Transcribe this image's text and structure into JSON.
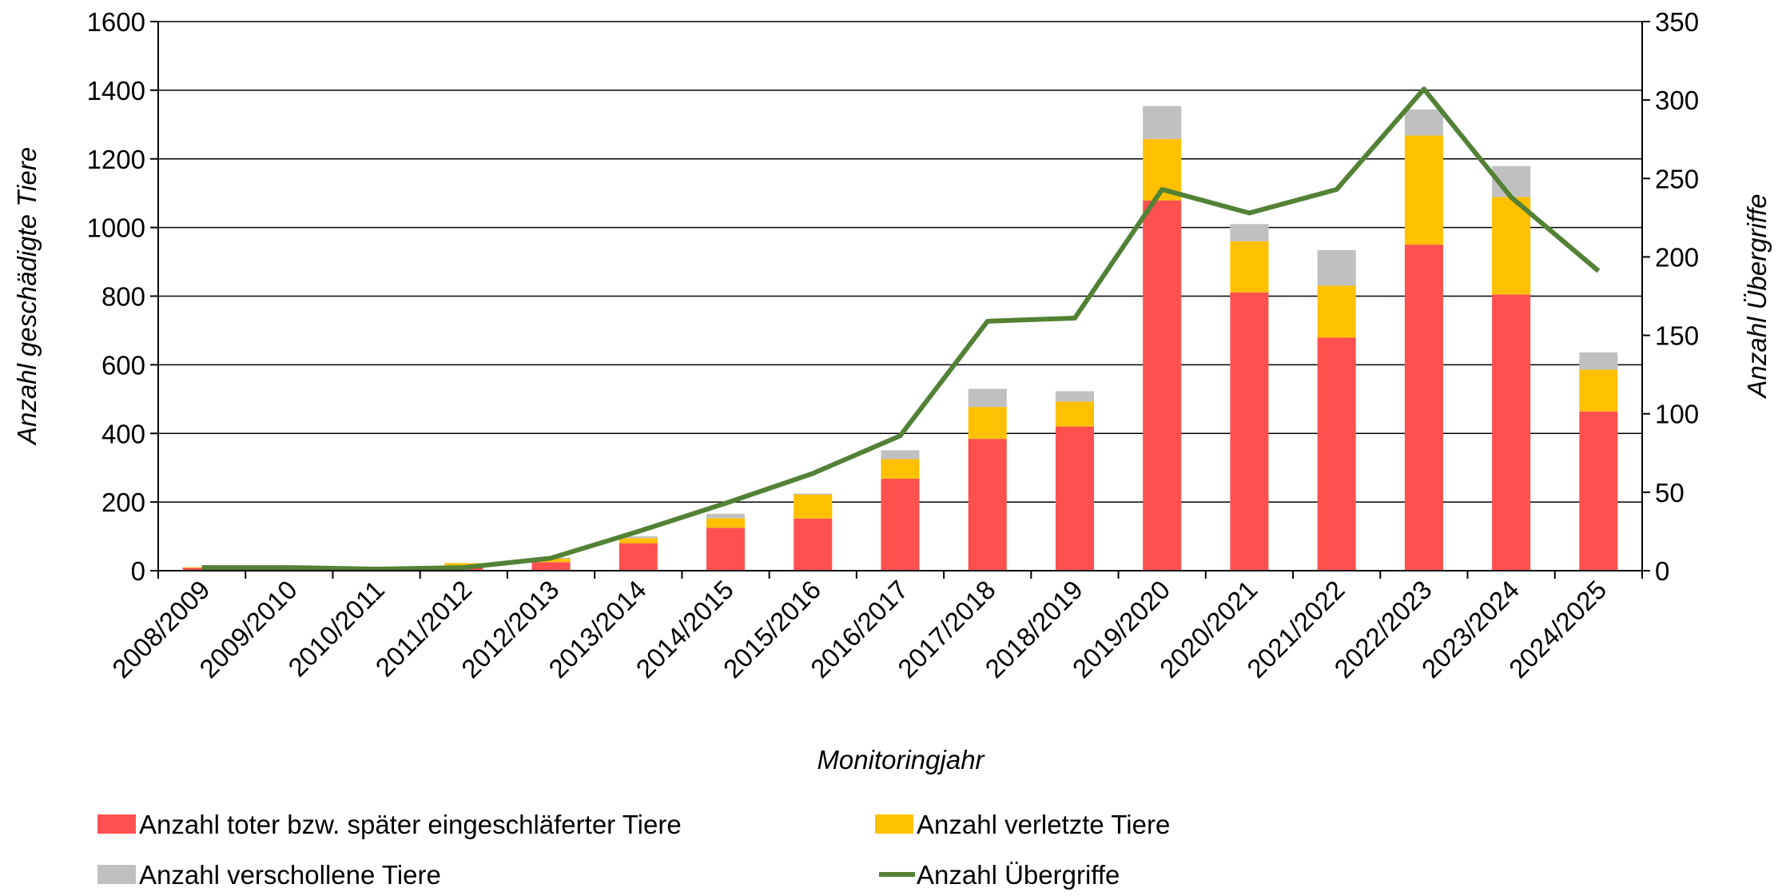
{
  "chart_data": {
    "type": "bar",
    "stacked": true,
    "x_label": "Monitoringjahr",
    "y_label": "Anzahl geschädigte Tiere",
    "y2_label": "Anzahl Übergriffe",
    "categories": [
      "2008/2009",
      "2009/2010",
      "2010/2011",
      "2011/2012",
      "2012/2013",
      "2013/2014",
      "2014/2015",
      "2015/2016",
      "2016/2017",
      "2017/2018",
      "2018/2019",
      "2019/2020",
      "2020/2021",
      "2021/2022",
      "2022/2023",
      "2023/2024",
      "2024/2025"
    ],
    "series": [
      {
        "name": "Anzahl toter bzw. später eingeschläferter Tiere",
        "type": "bar",
        "color": "#ff5050",
        "values": [
          8,
          0,
          0,
          12,
          25,
          80,
          125,
          152,
          268,
          384,
          420,
          1079,
          811,
          679,
          950,
          805,
          464
        ]
      },
      {
        "name": "Anzahl verletzte Tiere",
        "type": "bar",
        "color": "#ffc000",
        "values": [
          2,
          0,
          0,
          10,
          10,
          15,
          28,
          70,
          57,
          93,
          73,
          179,
          149,
          152,
          318,
          284,
          122
        ]
      },
      {
        "name": "Anzahl verschollene Tiere",
        "type": "bar",
        "color": "#c0c0c0",
        "values": [
          0,
          0,
          0,
          0,
          3,
          5,
          13,
          3,
          26,
          53,
          30,
          96,
          50,
          103,
          76,
          90,
          50
        ]
      },
      {
        "name": "Anzahl Übergriffe",
        "type": "line",
        "axis": "y2",
        "color": "#538135",
        "values": [
          2,
          2,
          1,
          2,
          8,
          25,
          43,
          62,
          86,
          159,
          161,
          243,
          228,
          243,
          307,
          238,
          191
        ]
      }
    ],
    "ylim": [
      0,
      1600
    ],
    "yticks": [
      0,
      200,
      400,
      600,
      800,
      1000,
      1200,
      1400,
      1600
    ],
    "y2lim": [
      0,
      350
    ],
    "y2ticks": [
      0,
      50,
      100,
      150,
      200,
      250,
      300,
      350
    ],
    "grid": true,
    "legend": "bottom"
  }
}
